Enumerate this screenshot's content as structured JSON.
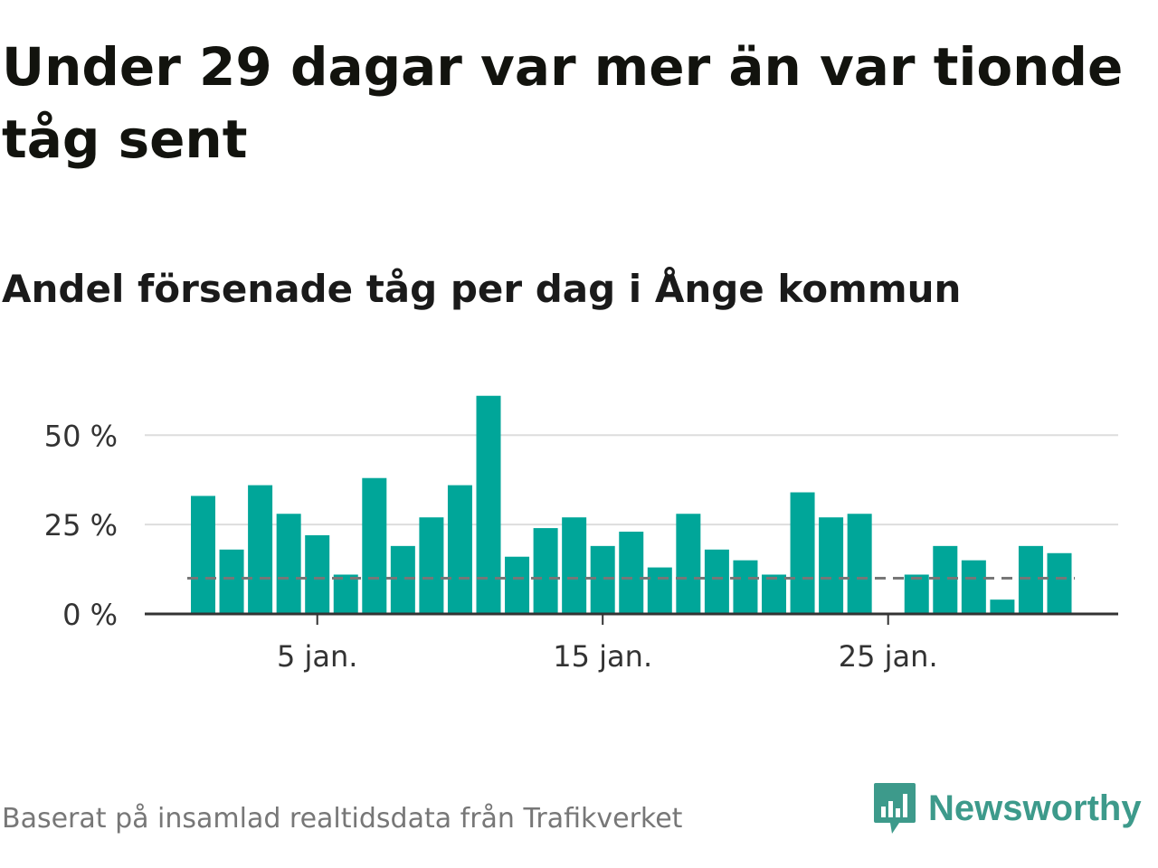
{
  "title": "Under 29 dagar var mer än var tionde tåg sent",
  "subtitle": "Andel försenade tåg per dag i Ånge kommun",
  "footer": {
    "source": "Baserat på insamlad realtidsdata från Trafikverket",
    "brand": "Newsworthy",
    "brand_icon": "bar-chart-speech-bubble-icon"
  },
  "colors": {
    "bar": "#00a699",
    "grid": "#dddddd",
    "axis": "#333333",
    "reference_line": "#777777",
    "brand": "#3d9a8b"
  },
  "chart_data": {
    "type": "bar",
    "x": [
      "1 jan.",
      "2 jan.",
      "3 jan.",
      "4 jan.",
      "5 jan.",
      "6 jan.",
      "7 jan.",
      "8 jan.",
      "9 jan.",
      "10 jan.",
      "11 jan.",
      "12 jan.",
      "13 jan.",
      "14 jan.",
      "15 jan.",
      "16 jan.",
      "17 jan.",
      "18 jan.",
      "19 jan.",
      "20 jan.",
      "21 jan.",
      "22 jan.",
      "23 jan.",
      "24 jan.",
      "25 jan.",
      "26 jan.",
      "27 jan.",
      "28 jan.",
      "29 jan.",
      "30 jan.",
      "31 jan."
    ],
    "values": [
      33,
      18,
      36,
      28,
      22,
      11,
      38,
      19,
      27,
      36,
      61,
      16,
      24,
      27,
      19,
      23,
      13,
      28,
      18,
      15,
      11,
      34,
      27,
      28,
      0,
      11,
      19,
      15,
      4,
      19,
      17
    ],
    "ylim": [
      0,
      62
    ],
    "y_ticks": [
      0,
      25,
      50
    ],
    "y_tick_labels": [
      "0 %",
      "25 %",
      "50 %"
    ],
    "x_ticks": [
      "5 jan.",
      "15 jan.",
      "25 jan."
    ],
    "reference_line": 10,
    "grid": true
  }
}
